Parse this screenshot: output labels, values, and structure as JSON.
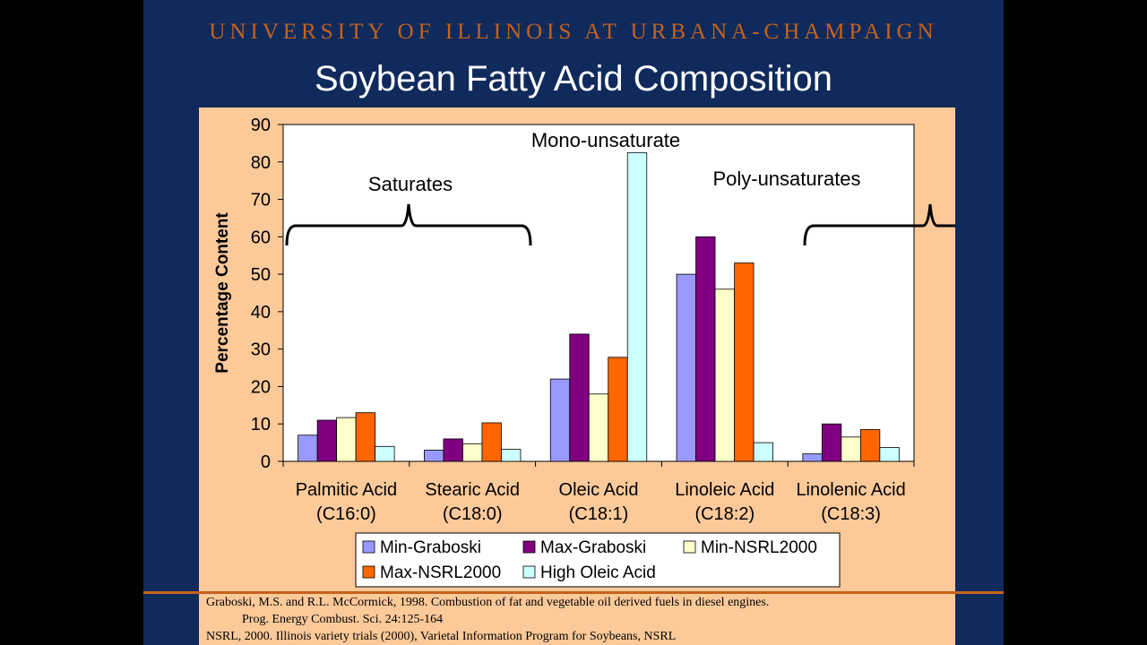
{
  "slide": {
    "header": "UNIVERSITY OF ILLINOIS AT URBANA-CHAMPAIGN",
    "title": "Soybean Fatty Acid Composition",
    "references": [
      "Graboski, M.S. and R.L. McCormick, 1998. Combustion of fat and vegetable oil derived fuels in diesel engines.",
      "Prog. Energy Combust. Sci. 24:125-164",
      "NSRL, 2000.  Illinois variety trials (2000), Varietal Information Program for Soybeans, NSRL"
    ]
  },
  "colors": {
    "background": "#102a5c",
    "header": "#c4631c",
    "panel": "#fcc999",
    "plot_area": "#ffffff"
  },
  "chart_data": {
    "type": "bar",
    "ylabel": "Percentage Content",
    "ylim": [
      0,
      90
    ],
    "yticks": [
      0,
      10,
      20,
      30,
      40,
      50,
      60,
      70,
      80,
      90
    ],
    "grid": false,
    "legend_position": "bottom",
    "categories": [
      [
        "Palmitic Acid",
        "(C16:0)"
      ],
      [
        "Stearic Acid",
        "(C18:0)"
      ],
      [
        "Oleic Acid",
        "(C18:1)"
      ],
      [
        "Linoleic Acid",
        "(C18:2)"
      ],
      [
        "Linolenic Acid",
        "(C18:3)"
      ]
    ],
    "series": [
      {
        "name": "Min-Graboski",
        "color": "#9999ff",
        "values": [
          7,
          3,
          22,
          50,
          2
        ]
      },
      {
        "name": "Max-Graboski",
        "color": "#800080",
        "values": [
          11,
          6,
          34,
          60,
          10
        ]
      },
      {
        "name": "Min-NSRL2000",
        "color": "#ffffcc",
        "values": [
          11.7,
          4.7,
          18,
          46,
          6.5
        ]
      },
      {
        "name": "Max-NSRL2000",
        "color": "#ff6600",
        "values": [
          13,
          10.3,
          27.8,
          53,
          8.5
        ]
      },
      {
        "name": "High Oleic Acid",
        "color": "#ccffff",
        "values": [
          4,
          3.2,
          82.5,
          5,
          3.7
        ]
      }
    ],
    "annotations": [
      {
        "text": "Saturates",
        "spans_categories": [
          0,
          1
        ]
      },
      {
        "text": "Mono-unsaturate",
        "spans_categories": [
          2,
          2
        ]
      },
      {
        "text": "Poly-unsaturates",
        "spans_categories": [
          3,
          4
        ]
      }
    ]
  }
}
